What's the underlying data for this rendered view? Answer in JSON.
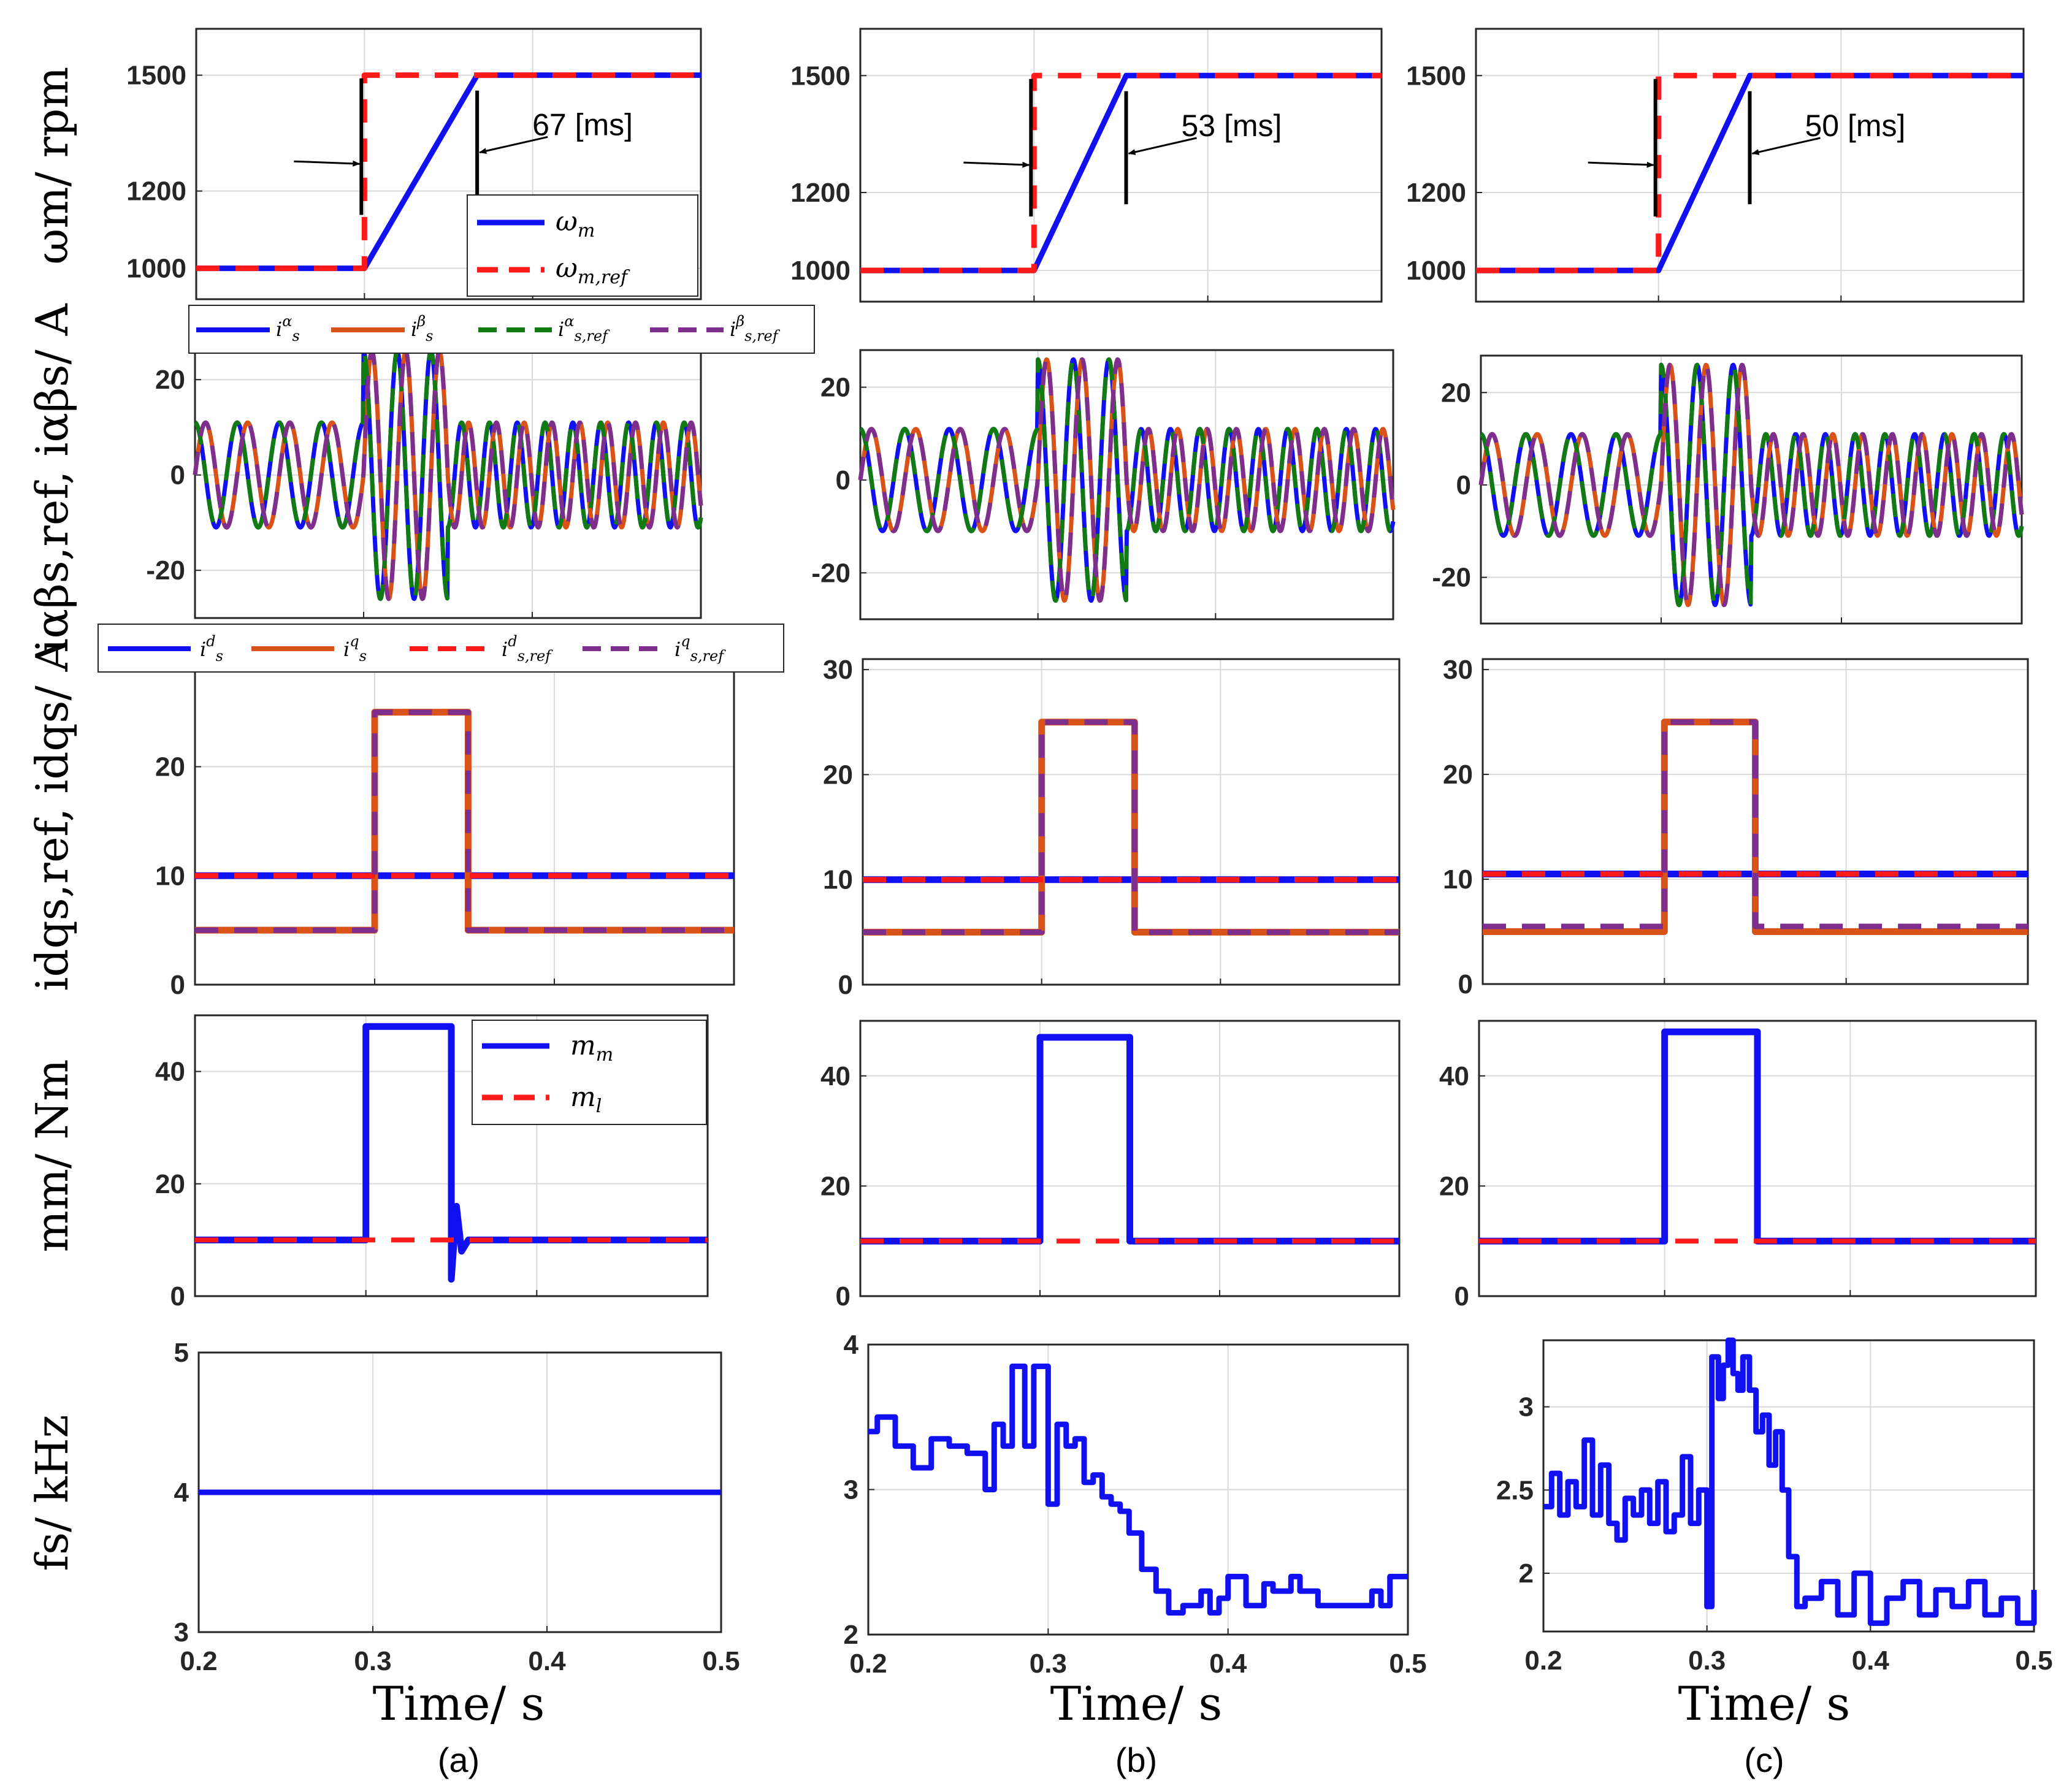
{
  "figure": {
    "columns": [
      "(a)",
      "(b)",
      "(c)"
    ],
    "xlabel": "Time/ s",
    "colors": {
      "blue": "#1010f0",
      "orange": "#d95319",
      "red": "#ff1a1a",
      "green": "#127a12",
      "purple": "#7e2f8e",
      "grid": "#d9d9d9",
      "black": "#000000"
    }
  },
  "chart_data": [
    {
      "id": "speed",
      "type": "line",
      "ylabel": "ωm/ rpm",
      "xlim": [
        0.2,
        0.5
      ],
      "xticks": [
        0.2,
        0.3,
        0.4,
        0.5
      ],
      "ylim": [
        920,
        1620
      ],
      "yticks": [
        1000,
        1200,
        1500
      ],
      "legend": [
        "ωm",
        "ωm,ref"
      ],
      "series": [
        {
          "name": "ωm",
          "color": "blue",
          "style": "solid",
          "panels": [
            {
              "x": [
                0.2,
                0.3,
                0.367,
                0.5
              ],
              "y": [
                1000,
                1000,
                1500,
                1500
              ]
            },
            {
              "x": [
                0.2,
                0.3,
                0.353,
                0.5
              ],
              "y": [
                1000,
                1000,
                1500,
                1500
              ]
            },
            {
              "x": [
                0.2,
                0.3,
                0.35,
                0.5
              ],
              "y": [
                1000,
                1000,
                1500,
                1500
              ]
            }
          ]
        },
        {
          "name": "ωm,ref",
          "color": "red",
          "style": "dash",
          "panels": [
            {
              "x": [
                0.2,
                0.3,
                0.3,
                0.5
              ],
              "y": [
                1000,
                1000,
                1500,
                1500
              ]
            },
            {
              "x": [
                0.2,
                0.3,
                0.3,
                0.5
              ],
              "y": [
                1000,
                1000,
                1500,
                1500
              ]
            },
            {
              "x": [
                0.2,
                0.3,
                0.3,
                0.5
              ],
              "y": [
                1000,
                1000,
                1500,
                1500
              ]
            }
          ]
        }
      ],
      "annotations": [
        "67 [ms]",
        "53 [ms]",
        "50 [ms]"
      ],
      "step_marker": {
        "from": 0.3,
        "to": [
          0.367,
          0.353,
          0.35
        ],
        "y_range": [
          1170,
          1460
        ]
      }
    },
    {
      "id": "ialphabeta",
      "type": "line",
      "ylabel": "iαβs,ref, iαβs/ A",
      "xlim": [
        0.2,
        0.5
      ],
      "xticks": [
        0.2,
        0.3,
        0.4,
        0.5
      ],
      "ylim": [
        -30,
        28
      ],
      "yticks": [
        -20,
        0,
        20
      ],
      "legend": [
        "iαs",
        "iβs",
        "iαs,ref",
        "iβs,ref"
      ],
      "signal": {
        "amplitude_steady": 11,
        "amplitude_transient": 26,
        "transient": [
          0.3,
          0.35
        ],
        "period_before_s": 0.025,
        "period_after_s": 0.0165
      },
      "series": [
        {
          "name": "iαs",
          "color": "blue",
          "style": "solid",
          "phase_deg": 0
        },
        {
          "name": "iβs",
          "color": "orange",
          "style": "solid",
          "phase_deg": -90
        },
        {
          "name": "iαs,ref",
          "color": "green",
          "style": "dash",
          "phase_deg": 0
        },
        {
          "name": "iβs,ref",
          "color": "purple",
          "style": "dash",
          "phase_deg": -90
        }
      ]
    },
    {
      "id": "idq",
      "type": "line",
      "ylabel": "idqs,ref, idqs/ A",
      "xlim": [
        0.2,
        0.5
      ],
      "xticks": [
        0.2,
        0.3,
        0.4,
        0.5
      ],
      "ylim": [
        0,
        31
      ],
      "yticks": [
        0,
        10,
        20,
        30
      ],
      "legend": [
        "ids",
        "iqs",
        "ids,ref",
        "iqs,ref"
      ],
      "series": [
        {
          "name": "ids",
          "color": "blue",
          "style": "solid",
          "panels": [
            {
              "x": [
                0.2,
                0.5
              ],
              "y": [
                10,
                10
              ]
            },
            {
              "x": [
                0.2,
                0.5
              ],
              "y": [
                10,
                10
              ]
            },
            {
              "x": [
                0.2,
                0.5
              ],
              "y": [
                10.5,
                10.5
              ]
            }
          ]
        },
        {
          "name": "iqs",
          "color": "orange",
          "style": "solid",
          "panels": [
            {
              "x": [
                0.2,
                0.3,
                0.3,
                0.352,
                0.352,
                0.5
              ],
              "y": [
                5,
                5,
                25,
                25,
                5,
                5
              ]
            },
            {
              "x": [
                0.2,
                0.3,
                0.3,
                0.352,
                0.352,
                0.5
              ],
              "y": [
                5,
                5,
                25,
                25,
                5,
                5
              ]
            },
            {
              "x": [
                0.2,
                0.3,
                0.3,
                0.35,
                0.35,
                0.5
              ],
              "y": [
                5,
                5,
                25,
                25,
                5,
                5
              ]
            }
          ]
        },
        {
          "name": "ids,ref",
          "color": "red",
          "style": "dash",
          "panels": [
            {
              "x": [
                0.2,
                0.5
              ],
              "y": [
                10,
                10
              ]
            },
            {
              "x": [
                0.2,
                0.5
              ],
              "y": [
                10,
                10
              ]
            },
            {
              "x": [
                0.2,
                0.5
              ],
              "y": [
                10.5,
                10.5
              ]
            }
          ]
        },
        {
          "name": "iqs,ref",
          "color": "purple",
          "style": "dash",
          "panels": [
            {
              "x": [
                0.2,
                0.3,
                0.3,
                0.352,
                0.352,
                0.5
              ],
              "y": [
                5,
                5,
                25,
                25,
                5,
                5
              ]
            },
            {
              "x": [
                0.2,
                0.3,
                0.3,
                0.352,
                0.352,
                0.5
              ],
              "y": [
                5,
                5,
                25,
                25,
                5,
                5
              ]
            },
            {
              "x": [
                0.2,
                0.3,
                0.3,
                0.35,
                0.35,
                0.5
              ],
              "y": [
                5.5,
                5.5,
                25,
                25,
                5.5,
                5.5
              ]
            }
          ]
        }
      ]
    },
    {
      "id": "torque",
      "type": "line",
      "ylabel": "mm/ Nm",
      "xlim": [
        0.2,
        0.5
      ],
      "xticks": [
        0.2,
        0.3,
        0.4,
        0.5
      ],
      "ylim": [
        0,
        50
      ],
      "yticks": [
        0,
        20,
        40
      ],
      "legend": [
        "mm",
        "ml"
      ],
      "series": [
        {
          "name": "mm",
          "color": "blue",
          "style": "solid",
          "panels": [
            {
              "x": [
                0.2,
                0.3,
                0.3,
                0.35,
                0.35,
                0.353,
                0.356,
                0.36,
                0.5
              ],
              "y": [
                10,
                10,
                48,
                48,
                3,
                16,
                8,
                10,
                10
              ]
            },
            {
              "x": [
                0.2,
                0.3,
                0.3,
                0.35,
                0.35,
                0.5
              ],
              "y": [
                10,
                10,
                47,
                47,
                10,
                10
              ]
            },
            {
              "x": [
                0.2,
                0.3,
                0.3,
                0.35,
                0.35,
                0.5
              ],
              "y": [
                10,
                10,
                48,
                48,
                10,
                10
              ]
            }
          ]
        },
        {
          "name": "ml",
          "color": "red",
          "style": "dash",
          "panels": [
            {
              "x": [
                0.2,
                0.5
              ],
              "y": [
                10,
                10
              ]
            },
            {
              "x": [
                0.2,
                0.5
              ],
              "y": [
                10,
                10
              ]
            },
            {
              "x": [
                0.2,
                0.5
              ],
              "y": [
                10,
                10
              ]
            }
          ]
        }
      ]
    },
    {
      "id": "fs",
      "type": "line",
      "ylabel": "fs/ kHz",
      "xlim": [
        0.2,
        0.5
      ],
      "xticks": [
        0.2,
        0.3,
        0.4,
        0.5
      ],
      "panel_ylim": [
        [
          3,
          5
        ],
        [
          2,
          4
        ],
        [
          1.65,
          3.4
        ]
      ],
      "panel_yticks": [
        [
          3,
          4,
          5
        ],
        [
          2,
          3,
          4
        ],
        [
          2,
          2.5,
          3
        ]
      ],
      "series": [
        {
          "name": "fs",
          "color": "blue",
          "style": "step",
          "panels": [
            {
              "x": [
                0.2,
                0.5
              ],
              "y": [
                4,
                4
              ]
            },
            {
              "x": [
                0.2,
                0.205,
                0.215,
                0.225,
                0.235,
                0.245,
                0.255,
                0.265,
                0.27,
                0.275,
                0.28,
                0.287,
                0.292,
                0.3,
                0.305,
                0.31,
                0.315,
                0.32,
                0.325,
                0.33,
                0.335,
                0.34,
                0.345,
                0.352,
                0.36,
                0.367,
                0.375,
                0.385,
                0.39,
                0.395,
                0.4,
                0.41,
                0.42,
                0.425,
                0.435,
                0.44,
                0.45,
                0.46,
                0.47,
                0.48,
                0.485,
                0.49,
                0.5
              ],
              "y": [
                3.4,
                3.5,
                3.3,
                3.15,
                3.35,
                3.3,
                3.25,
                3.0,
                3.45,
                3.3,
                3.85,
                3.3,
                3.85,
                2.9,
                3.45,
                3.3,
                3.35,
                3.05,
                3.1,
                2.95,
                2.9,
                2.85,
                2.7,
                2.45,
                2.3,
                2.15,
                2.2,
                2.3,
                2.15,
                2.25,
                2.4,
                2.2,
                2.35,
                2.3,
                2.4,
                2.3,
                2.2,
                2.2,
                2.2,
                2.3,
                2.2,
                2.4,
                2.4
              ]
            },
            {
              "x": [
                0.2,
                0.205,
                0.21,
                0.215,
                0.22,
                0.225,
                0.23,
                0.235,
                0.24,
                0.245,
                0.25,
                0.255,
                0.26,
                0.265,
                0.27,
                0.275,
                0.28,
                0.285,
                0.29,
                0.295,
                0.3,
                0.303,
                0.307,
                0.31,
                0.313,
                0.316,
                0.319,
                0.322,
                0.326,
                0.33,
                0.334,
                0.338,
                0.342,
                0.346,
                0.35,
                0.355,
                0.36,
                0.37,
                0.38,
                0.39,
                0.4,
                0.41,
                0.42,
                0.43,
                0.44,
                0.45,
                0.46,
                0.47,
                0.48,
                0.49,
                0.5
              ],
              "y": [
                2.4,
                2.6,
                2.35,
                2.55,
                2.4,
                2.8,
                2.35,
                2.65,
                2.3,
                2.2,
                2.45,
                2.35,
                2.5,
                2.3,
                2.55,
                2.25,
                2.35,
                2.7,
                2.3,
                2.5,
                1.8,
                3.3,
                3.05,
                3.25,
                3.4,
                3.2,
                3.1,
                3.3,
                3.1,
                2.85,
                2.95,
                2.65,
                2.85,
                2.5,
                2.1,
                1.8,
                1.85,
                1.95,
                1.75,
                2.0,
                1.7,
                1.85,
                1.95,
                1.75,
                1.9,
                1.8,
                1.95,
                1.75,
                1.85,
                1.7,
                1.9
              ]
            }
          ]
        }
      ]
    }
  ]
}
